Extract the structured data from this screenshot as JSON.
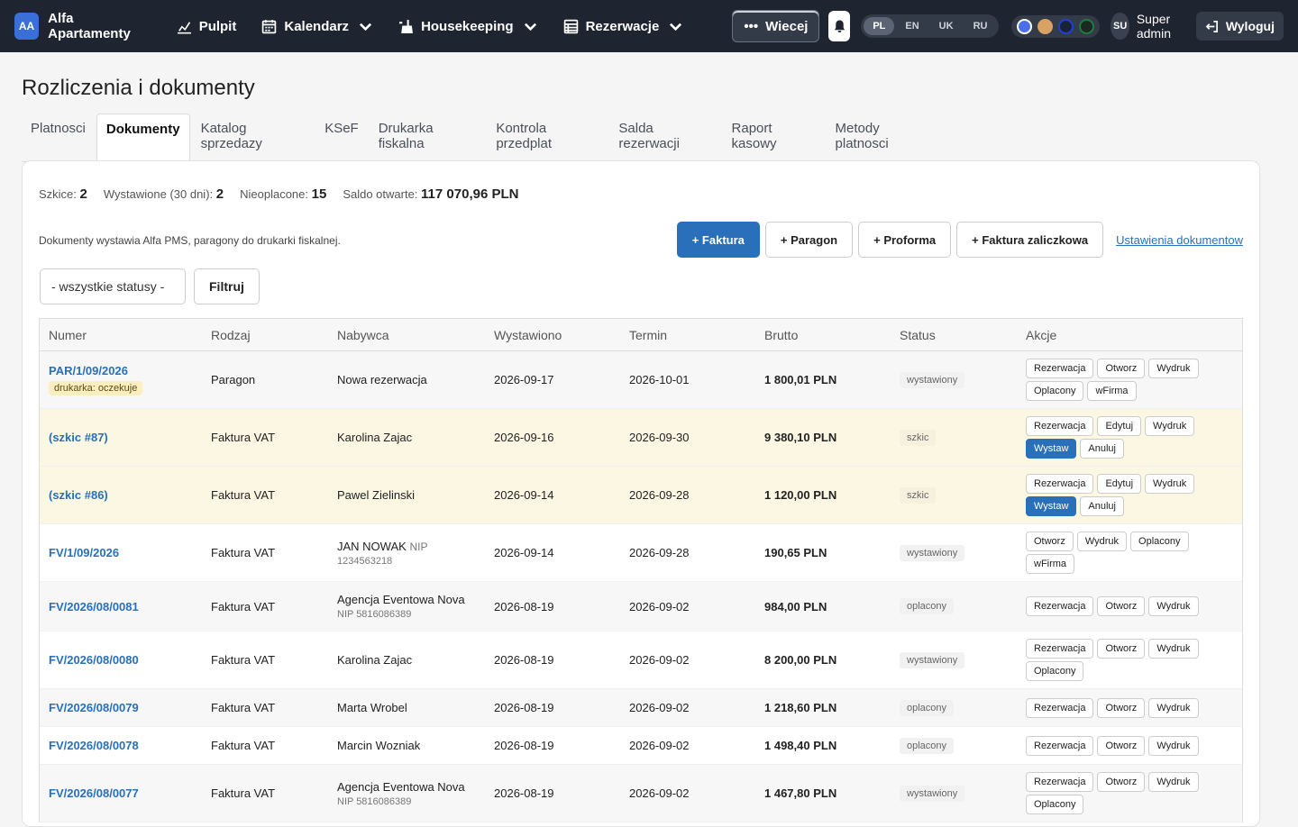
{
  "brand": {
    "initials": "AA",
    "name": "Alfa Apartamenty"
  },
  "nav": {
    "pulpit": "Pulpit",
    "kalendarz": "Kalendarz",
    "housekeeping": "Housekeeping",
    "rezerwacje": "Rezerwacje",
    "more": "Wiecej"
  },
  "languages": [
    "PL",
    "EN",
    "UK",
    "RU"
  ],
  "active_language": "PL",
  "theme_colors": [
    "#4a6fe8",
    "#d9a262",
    "#1f3fd8",
    "#1e7a3e"
  ],
  "user": {
    "initials": "SU",
    "name": "Super admin",
    "logout": "Wyloguj"
  },
  "page": {
    "title": "Rozliczenia i dokumenty"
  },
  "tabs": [
    "Platnosci",
    "Dokumenty",
    "Katalog sprzedazy",
    "KSeF",
    "Drukarka fiskalna",
    "Kontrola przedplat",
    "Salda rezerwacji",
    "Raport kasowy",
    "Metody platnosci"
  ],
  "active_tab": "Dokumenty",
  "stats": {
    "drafts_label": "Szkice:",
    "drafts": "2",
    "issued_label": "Wystawione (30 dni):",
    "issued": "2",
    "unpaid_label": "Nieoplacone:",
    "unpaid": "15",
    "balance_label": "Saldo otwarte:",
    "balance": "117 070,96 PLN"
  },
  "info_text": "Dokumenty wystawia Alfa PMS, paragony do drukarki fiskalnej.",
  "actions": {
    "invoice": "+ Faktura",
    "receipt": "+ Paragon",
    "proforma": "+ Proforma",
    "advance": "+ Faktura zaliczkowa",
    "settings_link": "Ustawienia dokumentow"
  },
  "filters": {
    "status_select": "- wszystkie statusy -",
    "filter_button": "Filtruj"
  },
  "table": {
    "headers": [
      "Numer",
      "Rodzaj",
      "Nabywca",
      "Wystawiono",
      "Termin",
      "Brutto",
      "Status",
      "Akcje"
    ],
    "rows": [
      {
        "number": "PAR/1/09/2026",
        "badge": "drukarka: oczekuje",
        "type": "Paragon",
        "buyer": "Nowa rezerwacja",
        "buyer_sub": "",
        "issued": "2026-09-17",
        "due": "2026-10-01",
        "gross": "1 800,01 PLN",
        "status": "wystawiony",
        "variant": "alt",
        "actions": [
          "Rezerwacja",
          "Otworz",
          "Wydruk",
          "Oplacony",
          "wFirma"
        ],
        "primary": []
      },
      {
        "number": "(szkic #87)",
        "badge": "",
        "type": "Faktura VAT",
        "buyer": "Karolina Zajac",
        "buyer_sub": "",
        "issued": "2026-09-16",
        "due": "2026-09-30",
        "gross": "9 380,10 PLN",
        "status": "szkic",
        "variant": "draft",
        "actions": [
          "Rezerwacja",
          "Edytuj",
          "Wydruk",
          "Wystaw",
          "Anuluj"
        ],
        "primary": [
          "Wystaw"
        ]
      },
      {
        "number": "(szkic #86)",
        "badge": "",
        "type": "Faktura VAT",
        "buyer": "Pawel Zielinski",
        "buyer_sub": "",
        "issued": "2026-09-14",
        "due": "2026-09-28",
        "gross": "1 120,00 PLN",
        "status": "szkic",
        "variant": "draft",
        "actions": [
          "Rezerwacja",
          "Edytuj",
          "Wydruk",
          "Wystaw",
          "Anuluj"
        ],
        "primary": [
          "Wystaw"
        ]
      },
      {
        "number": "FV/1/09/2026",
        "badge": "",
        "type": "Faktura VAT",
        "buyer": "JAN NOWAK",
        "buyer_inline": "NIP",
        "buyer_sub": "1234563218",
        "issued": "2026-09-14",
        "due": "2026-09-28",
        "gross": "190,65 PLN",
        "status": "wystawiony",
        "variant": "",
        "actions": [
          "Otworz",
          "Wydruk",
          "Oplacony",
          "wFirma"
        ],
        "primary": []
      },
      {
        "number": "FV/2026/08/0081",
        "badge": "",
        "type": "Faktura VAT",
        "buyer": "Agencja Eventowa Nova",
        "buyer_sub": "NIP 5816086389",
        "issued": "2026-08-19",
        "due": "2026-09-02",
        "gross": "984,00 PLN",
        "status": "oplacony",
        "variant": "alt",
        "actions": [
          "Rezerwacja",
          "Otworz",
          "Wydruk"
        ],
        "primary": []
      },
      {
        "number": "FV/2026/08/0080",
        "badge": "",
        "type": "Faktura VAT",
        "buyer": "Karolina Zajac",
        "buyer_sub": "",
        "issued": "2026-08-19",
        "due": "2026-09-02",
        "gross": "8 200,00 PLN",
        "status": "wystawiony",
        "variant": "",
        "actions": [
          "Rezerwacja",
          "Otworz",
          "Wydruk",
          "Oplacony"
        ],
        "primary": []
      },
      {
        "number": "FV/2026/08/0079",
        "badge": "",
        "type": "Faktura VAT",
        "buyer": "Marta Wrobel",
        "buyer_sub": "",
        "issued": "2026-08-19",
        "due": "2026-09-02",
        "gross": "1 218,60 PLN",
        "status": "oplacony",
        "variant": "alt",
        "actions": [
          "Rezerwacja",
          "Otworz",
          "Wydruk"
        ],
        "primary": []
      },
      {
        "number": "FV/2026/08/0078",
        "badge": "",
        "type": "Faktura VAT",
        "buyer": "Marcin Wozniak",
        "buyer_sub": "",
        "issued": "2026-08-19",
        "due": "2026-09-02",
        "gross": "1 498,40 PLN",
        "status": "oplacony",
        "variant": "",
        "actions": [
          "Rezerwacja",
          "Otworz",
          "Wydruk"
        ],
        "primary": []
      },
      {
        "number": "FV/2026/08/0077",
        "badge": "",
        "type": "Faktura VAT",
        "buyer": "Agencja Eventowa Nova",
        "buyer_sub": "NIP 5816086389",
        "issued": "2026-08-19",
        "due": "2026-09-02",
        "gross": "1 467,80 PLN",
        "status": "wystawiony",
        "variant": "alt",
        "actions": [
          "Rezerwacja",
          "Otworz",
          "Wydruk",
          "Oplacony"
        ],
        "primary": []
      }
    ]
  }
}
